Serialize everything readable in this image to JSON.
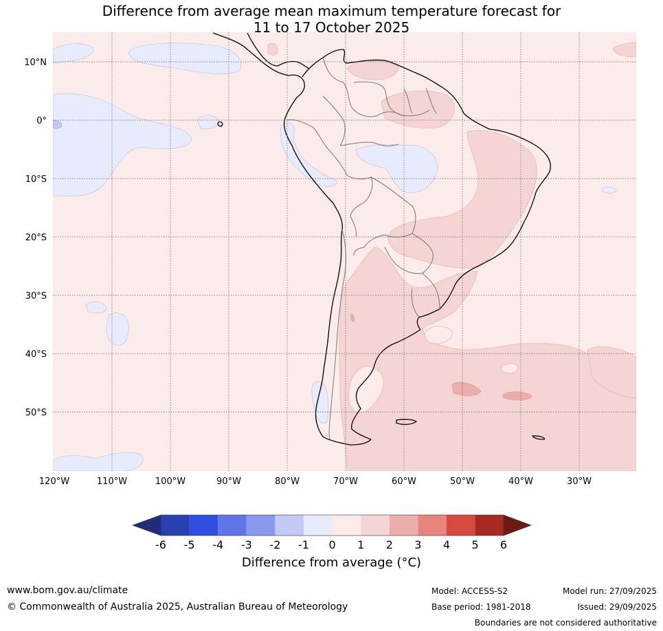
{
  "title": {
    "line1": "Difference from average mean maximum temperature forecast for",
    "line2": "11 to 17 October 2025"
  },
  "map": {
    "lat_labels": [
      "10°N",
      "0°",
      "10°S",
      "20°S",
      "30°S",
      "40°S",
      "50°S"
    ],
    "lon_labels": [
      "120°W",
      "110°W",
      "100°W",
      "90°W",
      "80°W",
      "70°W",
      "60°W",
      "50°W",
      "40°W",
      "30°W"
    ]
  },
  "colorbar": {
    "labels": [
      "-6",
      "-5",
      "-4",
      "-3",
      "-2",
      "-1",
      "0",
      "1",
      "2",
      "3",
      "4",
      "5",
      "6"
    ],
    "colors": [
      "#1f2d7a",
      "#2a3fb0",
      "#2f4fe0",
      "#5f76e6",
      "#8999ee",
      "#c2c9f4",
      "#e8ebfb",
      "#fbebea",
      "#f5d5d3",
      "#ecaeaa",
      "#e6847d",
      "#d84a40",
      "#a82a22",
      "#6e1a16"
    ],
    "title": "Difference from average (°C)"
  },
  "footer": {
    "website": "www.bom.gov.au/climate",
    "copyright": "© Commonwealth of Australia 2025, Australian Bureau of Meteorology",
    "model": "Model: ACCESS-S2",
    "base_period": "Base period: 1981-2018",
    "model_run": "Model run: 27/09/2025",
    "issued": "Issued: 29/09/2025",
    "disclaimer": "Boundaries are not considered authoritative"
  }
}
